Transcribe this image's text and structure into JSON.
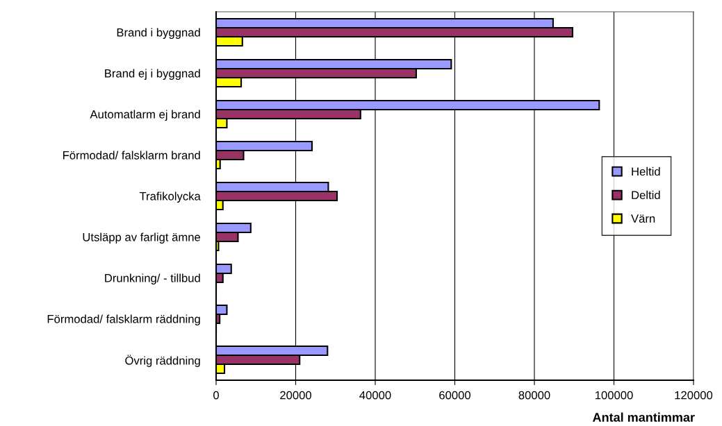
{
  "chart_data": {
    "type": "bar",
    "orientation": "horizontal",
    "xlabel": "Antal mantimmar",
    "categories": [
      "Brand i byggnad",
      "Brand ej i byggnad",
      "Automatlarm ej brand",
      "Förmodad/ falsklarm brand",
      "Trafikolycka",
      "Utsläpp av farligt ämne",
      "Drunkning/ - tillbud",
      "Förmodad/ falsklarm räddning",
      "Övrig räddning"
    ],
    "series": [
      {
        "name": "Heltid",
        "color": "#9999ff",
        "values": [
          84700,
          59100,
          96300,
          24100,
          28200,
          8700,
          3800,
          2700,
          28000
        ]
      },
      {
        "name": "Deltid",
        "color": "#993366",
        "values": [
          89600,
          50300,
          36300,
          6900,
          30400,
          5500,
          1700,
          900,
          21000
        ]
      },
      {
        "name": "Värn",
        "color": "#ffff00",
        "values": [
          6600,
          6300,
          2700,
          1000,
          1700,
          600,
          0,
          0,
          2100
        ]
      }
    ],
    "xlim": [
      0,
      120000
    ],
    "xticks": [
      0,
      20000,
      40000,
      60000,
      80000,
      100000,
      120000
    ],
    "grid": "x",
    "legend": "right"
  }
}
